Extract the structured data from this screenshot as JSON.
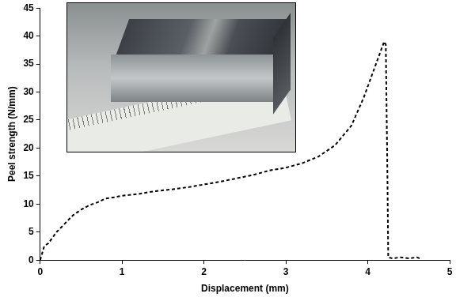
{
  "chart_data": {
    "type": "line",
    "xlabel": "Displacement (mm)",
    "ylabel": "Peel strength (N/mm)",
    "x": [
      0,
      0.05,
      0.1,
      0.2,
      0.3,
      0.4,
      0.5,
      0.6,
      0.7,
      0.8,
      0.9,
      1.0,
      1.2,
      1.4,
      1.6,
      1.8,
      2.0,
      2.2,
      2.4,
      2.6,
      2.8,
      3.0,
      3.2,
      3.4,
      3.6,
      3.8,
      3.95,
      4.05,
      4.15,
      4.2,
      4.22,
      4.24,
      4.25,
      4.3,
      4.4,
      4.5,
      4.6,
      4.65
    ],
    "values": [
      0,
      2.5,
      3,
      5,
      6.5,
      8,
      9,
      9.8,
      10.3,
      11,
      11.2,
      11.5,
      11.8,
      12.3,
      12.6,
      13,
      13.5,
      14,
      14.6,
      15.2,
      16,
      16.5,
      17.3,
      18.5,
      20.5,
      24,
      29,
      33,
      37,
      39,
      38.5,
      15,
      0.5,
      0.3,
      0.5,
      0.3,
      0.5,
      0.2
    ],
    "color": "#000000",
    "line_style": "dashed",
    "marker": "none",
    "grid": false,
    "xlim": [
      0,
      5
    ],
    "xticks": [
      0,
      1,
      2,
      3,
      4,
      5
    ],
    "ylim": [
      0,
      45
    ],
    "yticks": [
      0,
      5,
      10,
      15,
      20,
      25,
      30,
      35,
      40,
      45
    ]
  }
}
